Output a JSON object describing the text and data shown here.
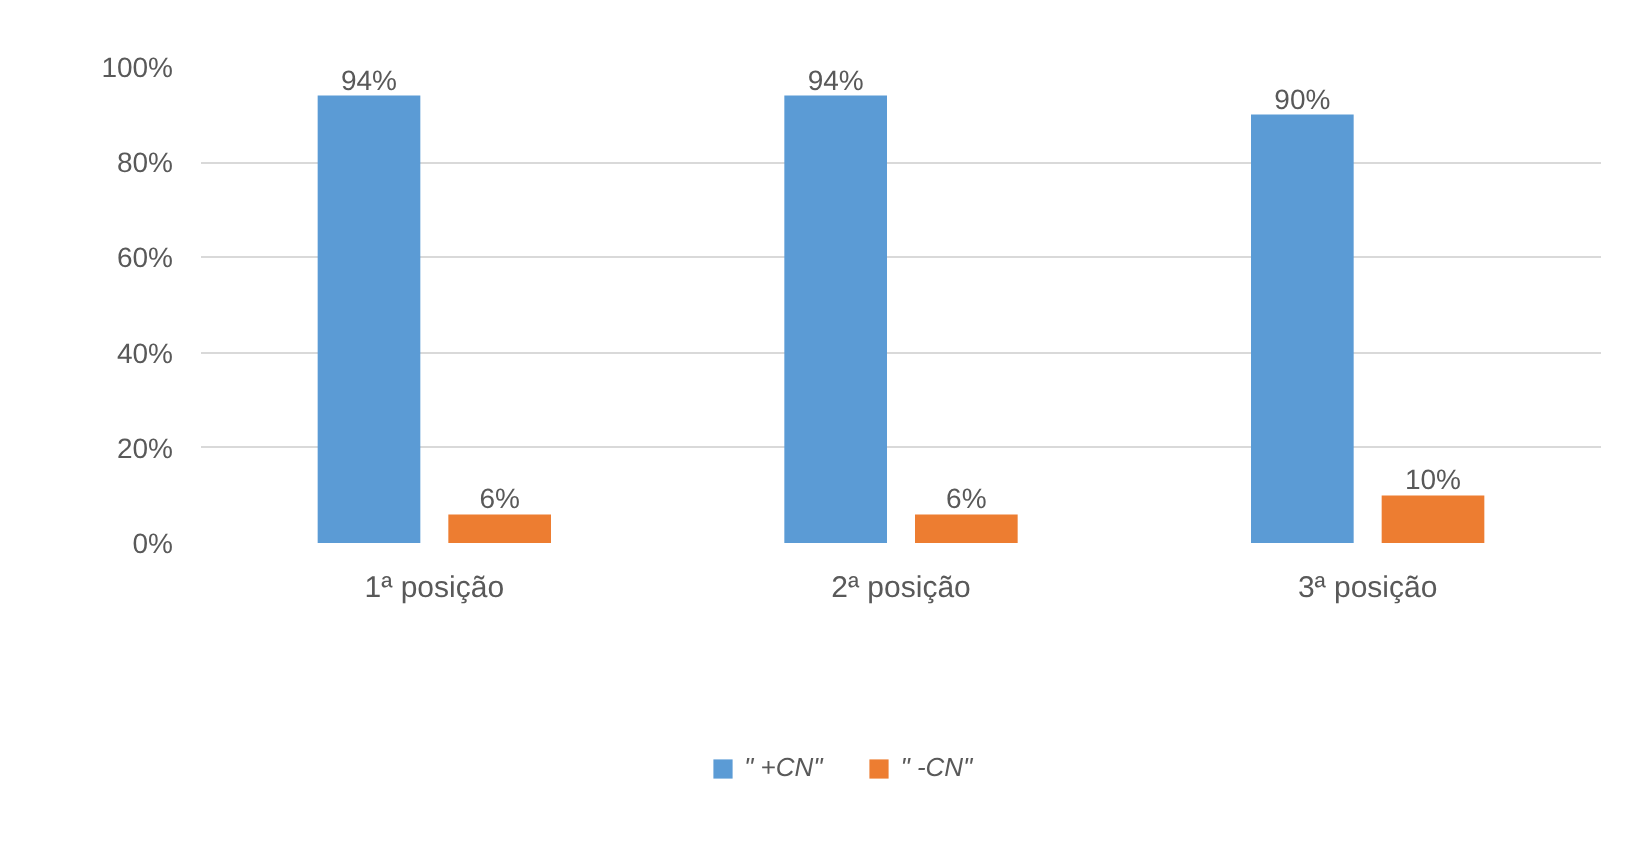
{
  "chart_data": {
    "type": "bar",
    "categories": [
      "1ª posição",
      "2ª posição",
      "3ª posição"
    ],
    "series": [
      {
        "name": "\" +CN\"",
        "color": "#5b9bd5",
        "values": [
          94,
          94,
          90
        ],
        "value_labels": [
          "94%",
          "94%",
          "90%"
        ]
      },
      {
        "name": "\" -CN\"",
        "color": "#ed7d31",
        "values": [
          6,
          6,
          10
        ],
        "value_labels": [
          "6%",
          "6%",
          "10%"
        ]
      }
    ],
    "ylim": [
      0,
      100
    ],
    "yticks": [
      {
        "value": 0,
        "label": "0%"
      },
      {
        "value": 20,
        "label": "20%"
      },
      {
        "value": 40,
        "label": "40%"
      },
      {
        "value": 60,
        "label": "60%"
      },
      {
        "value": 80,
        "label": "80%"
      },
      {
        "value": 100,
        "label": "100%"
      }
    ],
    "grid": "y",
    "legend": "bottom"
  }
}
